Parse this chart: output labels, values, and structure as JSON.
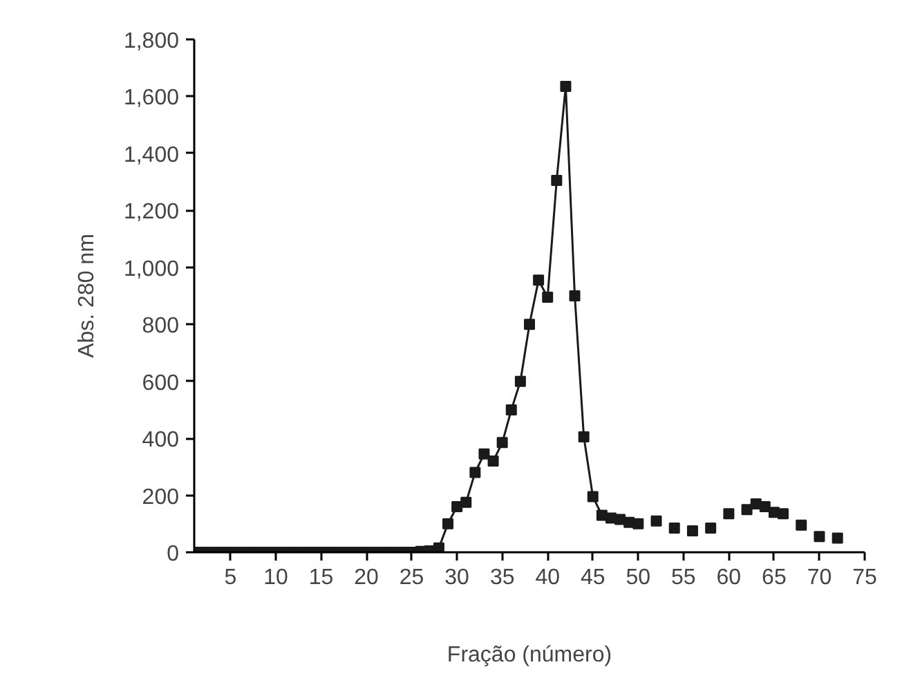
{
  "chart_data": {
    "type": "line",
    "xlabel": "Fração (número)",
    "ylabel": "Abs. 280 nm",
    "xlim": [
      1,
      75
    ],
    "ylim": [
      0,
      1800
    ],
    "xticks": [
      5,
      10,
      15,
      20,
      25,
      30,
      35,
      40,
      45,
      50,
      55,
      60,
      65,
      70,
      75
    ],
    "yticks": [
      {
        "value": 0,
        "label": "0"
      },
      {
        "value": 200,
        "label": "200"
      },
      {
        "value": 400,
        "label": "400"
      },
      {
        "value": 600,
        "label": "600"
      },
      {
        "value": 800,
        "label": "800"
      },
      {
        "value": 1000,
        "label": "1,000"
      },
      {
        "value": 1200,
        "label": "1,200"
      },
      {
        "value": 1400,
        "label": "1,400"
      },
      {
        "value": 1600,
        "label": "1,600"
      },
      {
        "value": 1800,
        "label": "1,800"
      }
    ],
    "grid": false,
    "marker": "square",
    "line_style": "solid",
    "series": [
      {
        "color": "#1a1a1a",
        "x": [
          1,
          2,
          3,
          4,
          5,
          6,
          7,
          8,
          9,
          10,
          11,
          12,
          13,
          14,
          15,
          16,
          17,
          18,
          19,
          20,
          21,
          22,
          23,
          24,
          25,
          26,
          27,
          28,
          29,
          30,
          31,
          32,
          33,
          34,
          35,
          36,
          37,
          38,
          39,
          40,
          41,
          42,
          43,
          44,
          45,
          46
        ],
        "values": [
          0,
          0,
          0,
          0,
          0,
          0,
          0,
          0,
          0,
          0,
          0,
          0,
          0,
          0,
          0,
          0,
          0,
          0,
          0,
          0,
          0,
          0,
          0,
          0,
          0,
          3,
          5,
          15,
          100,
          160,
          175,
          280,
          345,
          320,
          385,
          500,
          600,
          800,
          955,
          895,
          1305,
          1635,
          900,
          405,
          195,
          130
        ]
      },
      {
        "type": "scatter",
        "color": "#1a1a1a",
        "x": [
          47,
          48,
          49,
          50,
          52,
          54,
          56,
          58,
          60,
          62,
          63,
          64,
          65,
          66,
          68,
          70,
          72
        ],
        "values": [
          120,
          115,
          105,
          100,
          110,
          85,
          75,
          85,
          135,
          150,
          170,
          160,
          140,
          135,
          95,
          55,
          50
        ]
      }
    ]
  }
}
